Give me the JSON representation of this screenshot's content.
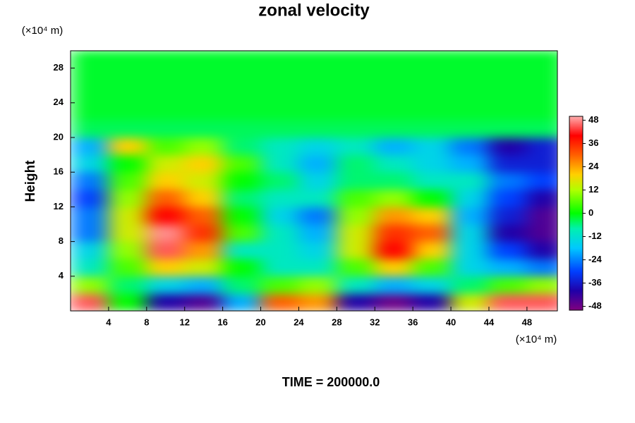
{
  "chart_data": {
    "type": "contour",
    "title": "zonal velocity",
    "ylabel": "Height",
    "xunit": "(×10⁴ m)",
    "yunit": "(×10⁴ m)",
    "footer": "TIME = 200000.0",
    "x": [
      2,
      6,
      10,
      14,
      18,
      22,
      26,
      30,
      34,
      38,
      42,
      46,
      50
    ],
    "y": [
      1,
      3,
      5,
      7,
      9,
      11,
      13,
      15,
      17,
      19,
      21,
      23,
      25,
      27,
      29
    ],
    "values": [
      [
        45,
        0,
        -40,
        -45,
        -20,
        30,
        25,
        -40,
        -48,
        -40,
        15,
        45,
        45
      ],
      [
        10,
        -5,
        -15,
        -20,
        -5,
        5,
        10,
        -10,
        -20,
        -15,
        -5,
        5,
        10
      ],
      [
        -10,
        5,
        20,
        15,
        0,
        -10,
        -10,
        5,
        20,
        5,
        -15,
        -20,
        -25
      ],
      [
        -15,
        10,
        45,
        25,
        -10,
        -10,
        -15,
        15,
        40,
        20,
        -15,
        -30,
        -40
      ],
      [
        -25,
        15,
        48,
        35,
        5,
        -10,
        -20,
        15,
        35,
        30,
        -15,
        -40,
        -45
      ],
      [
        -25,
        15,
        40,
        30,
        0,
        -15,
        -25,
        10,
        25,
        20,
        -20,
        -35,
        -45
      ],
      [
        -30,
        10,
        30,
        20,
        -5,
        -10,
        -10,
        5,
        10,
        0,
        -15,
        -30,
        -40
      ],
      [
        -25,
        5,
        20,
        15,
        0,
        -5,
        -15,
        -5,
        -5,
        -10,
        -10,
        -25,
        -30
      ],
      [
        -15,
        0,
        15,
        20,
        5,
        -10,
        -20,
        -5,
        -10,
        -15,
        -20,
        -35,
        -35
      ],
      [
        -20,
        20,
        5,
        10,
        -5,
        -10,
        -15,
        -10,
        -20,
        -15,
        -25,
        -40,
        -35
      ],
      [
        -4,
        -4,
        -4,
        -4,
        -4,
        -4,
        -4,
        -4,
        -4,
        -4,
        -4,
        -4,
        -4
      ],
      [
        -2,
        -2,
        -2,
        -2,
        -2,
        -2,
        -2,
        -2,
        -2,
        -2,
        -2,
        -2,
        -2
      ],
      [
        -2,
        -2,
        -2,
        -2,
        -2,
        -2,
        -2,
        -2,
        -2,
        -2,
        -2,
        -2,
        -2
      ],
      [
        -2,
        -2,
        -2,
        -2,
        -2,
        -2,
        -2,
        -2,
        -2,
        -2,
        -2,
        -2,
        -2
      ],
      [
        -2,
        -2,
        -2,
        -2,
        -2,
        -2,
        -2,
        -2,
        -2,
        -2,
        -2,
        -2,
        -2
      ]
    ],
    "xlim": [
      0,
      51.2
    ],
    "ylim": [
      0,
      30
    ],
    "xticks": [
      4,
      8,
      12,
      16,
      20,
      24,
      28,
      32,
      36,
      40,
      44,
      48
    ],
    "yticks": [
      4,
      8,
      12,
      16,
      20,
      24,
      28
    ],
    "clim": [
      -50,
      50
    ],
    "cticks": [
      -48,
      -36,
      -24,
      -12,
      0,
      12,
      24,
      36,
      48
    ]
  }
}
